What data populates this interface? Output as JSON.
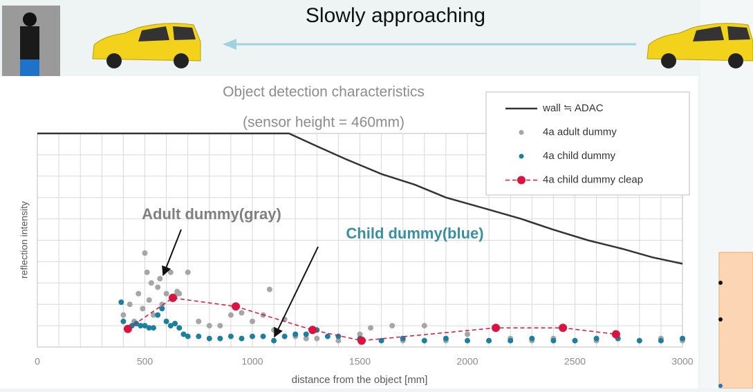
{
  "slide": {
    "title": "Slowly approaching"
  },
  "chart_data": {
    "type": "scatter",
    "title": "Object detection characteristics",
    "subtitle": "(sensor height = 460mm)",
    "x_label": "distance from the object [mm]",
    "y_label": "reflection intensity",
    "xlim": [
      0,
      3000
    ],
    "ylim": [
      0,
      10
    ],
    "xticks": [
      0,
      500,
      1000,
      1500,
      2000,
      2500,
      3000
    ],
    "x_grid": [
      0,
      100,
      200,
      300,
      400,
      500,
      600,
      700,
      800,
      900,
      1000,
      1100,
      1200,
      1300,
      1400,
      1500,
      1600,
      1700,
      1800,
      1900,
      2000,
      2100,
      2200,
      2300,
      2400,
      2500,
      2600,
      2700,
      2800,
      2900,
      3000
    ],
    "y_grid": [
      0,
      1,
      2,
      3,
      4,
      5,
      6,
      7,
      8,
      9,
      10
    ],
    "grid": true,
    "legend": "upper right",
    "series": [
      {
        "name": "wall ≒ ADAC",
        "style": "line",
        "color": "#333333",
        "x": [
          0,
          1170,
          1300,
          1434,
          1600,
          1756,
          1900,
          2077,
          2250,
          2398,
          2560,
          2720,
          2860,
          3000
        ],
        "values": [
          10,
          10,
          9.4,
          8.8,
          8.1,
          7.6,
          7.0,
          6.5,
          6.0,
          5.5,
          5.0,
          4.6,
          4.2,
          3.9
        ]
      },
      {
        "name": "4a adult dummy",
        "style": "scatter",
        "color": "#a6a6a6",
        "x": [
          400,
          430,
          450,
          470,
          490,
          500,
          510,
          520,
          530,
          540,
          560,
          570,
          580,
          600,
          620,
          640,
          650,
          660,
          700,
          750,
          800,
          850,
          900,
          950,
          1000,
          1050,
          1080,
          1100,
          1150,
          1200,
          1250,
          1300,
          1400,
          1500,
          1550,
          1650,
          1700,
          1800,
          1900,
          2000,
          2100,
          2200,
          2300,
          2400,
          2500,
          2600,
          2700,
          2800,
          2900,
          3000
        ],
        "values": [
          1.5,
          2.0,
          1.2,
          2.5,
          1.8,
          4.4,
          3.5,
          2.2,
          3.0,
          1.5,
          2.8,
          3.2,
          2.0,
          2.5,
          3.5,
          2.4,
          2.6,
          2.5,
          3.5,
          1.2,
          1.0,
          1.0,
          1.5,
          1.6,
          1.2,
          1.5,
          2.7,
          0.8,
          1.3,
          0.5,
          0.4,
          0.4,
          0.3,
          0.6,
          0.9,
          1.0,
          0.3,
          1.0,
          0.3,
          0.6,
          0.3,
          0.4,
          0.3,
          0.4,
          0.3,
          0.3,
          0.4,
          0.3,
          0.4,
          0.3
        ]
      },
      {
        "name": "4a child dummy",
        "style": "scatter",
        "color": "#1b7f9e",
        "x": [
          390,
          400,
          420,
          440,
          460,
          480,
          500,
          520,
          540,
          560,
          580,
          600,
          620,
          640,
          660,
          680,
          700,
          750,
          800,
          850,
          900,
          950,
          1000,
          1050,
          1100,
          1150,
          1200,
          1250,
          1300,
          1350,
          1400,
          1500,
          1600,
          1700,
          1800,
          1900,
          2000,
          2100,
          2200,
          2300,
          2400,
          2500,
          2600,
          2700,
          2800,
          2900,
          3000
        ],
        "values": [
          2.1,
          1.2,
          0.9,
          1.0,
          1.1,
          1.0,
          1.0,
          0.9,
          0.9,
          1.5,
          1.8,
          1.2,
          1.0,
          1.1,
          0.9,
          0.6,
          0.5,
          0.5,
          0.4,
          0.4,
          0.5,
          0.4,
          0.5,
          0.5,
          0.3,
          0.5,
          0.6,
          0.6,
          0.8,
          0.5,
          0.5,
          0.4,
          0.3,
          0.4,
          0.3,
          0.4,
          0.3,
          0.3,
          0.3,
          0.4,
          0.3,
          0.3,
          0.4,
          0.4,
          0.3,
          0.3,
          0.4
        ]
      },
      {
        "name": "4a child dummy cleap",
        "style": "dashed-marker",
        "color": "#d9143f",
        "x": [
          421,
          630,
          923,
          1280,
          1508,
          2132,
          2444,
          2691
        ],
        "values": [
          0.85,
          2.3,
          1.9,
          0.8,
          0.3,
          0.9,
          0.9,
          0.6
        ]
      }
    ],
    "annotations": [
      {
        "text": "Adult dummy(gray)",
        "color": "#7f7f7f"
      },
      {
        "text": "Child dummy(blue)",
        "color": "#3a8fa0"
      }
    ]
  }
}
